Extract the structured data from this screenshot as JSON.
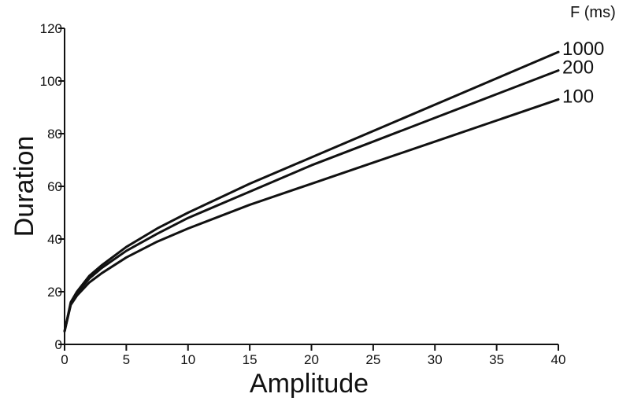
{
  "chart_data": {
    "type": "line",
    "title": "",
    "xlabel": "Amplitude",
    "ylabel": "Duration",
    "xlim": [
      0,
      40
    ],
    "ylim": [
      0,
      120
    ],
    "xticks": [
      0,
      5,
      10,
      15,
      20,
      25,
      30,
      35,
      40
    ],
    "yticks": [
      0,
      20,
      40,
      60,
      80,
      100,
      120
    ],
    "legend_title": "F (ms)",
    "legend_position": "top-right",
    "grid": false,
    "line_color": "#111111",
    "x": [
      0,
      0.5,
      1,
      2,
      3,
      5,
      7.5,
      10,
      15,
      20,
      25,
      30,
      35,
      40
    ],
    "series": [
      {
        "name": "1000",
        "values": [
          5,
          16,
          20,
          26,
          30,
          37,
          44,
          50,
          61,
          71,
          81,
          91,
          101,
          111
        ]
      },
      {
        "name": "200",
        "values": [
          5,
          15.5,
          19.5,
          25,
          29,
          35.5,
          42,
          48,
          58,
          68,
          77,
          86,
          95,
          104
        ]
      },
      {
        "name": "100",
        "values": [
          5,
          15,
          18.5,
          23.5,
          27,
          33,
          39,
          44,
          53,
          61,
          69,
          77,
          85,
          93
        ]
      }
    ]
  }
}
